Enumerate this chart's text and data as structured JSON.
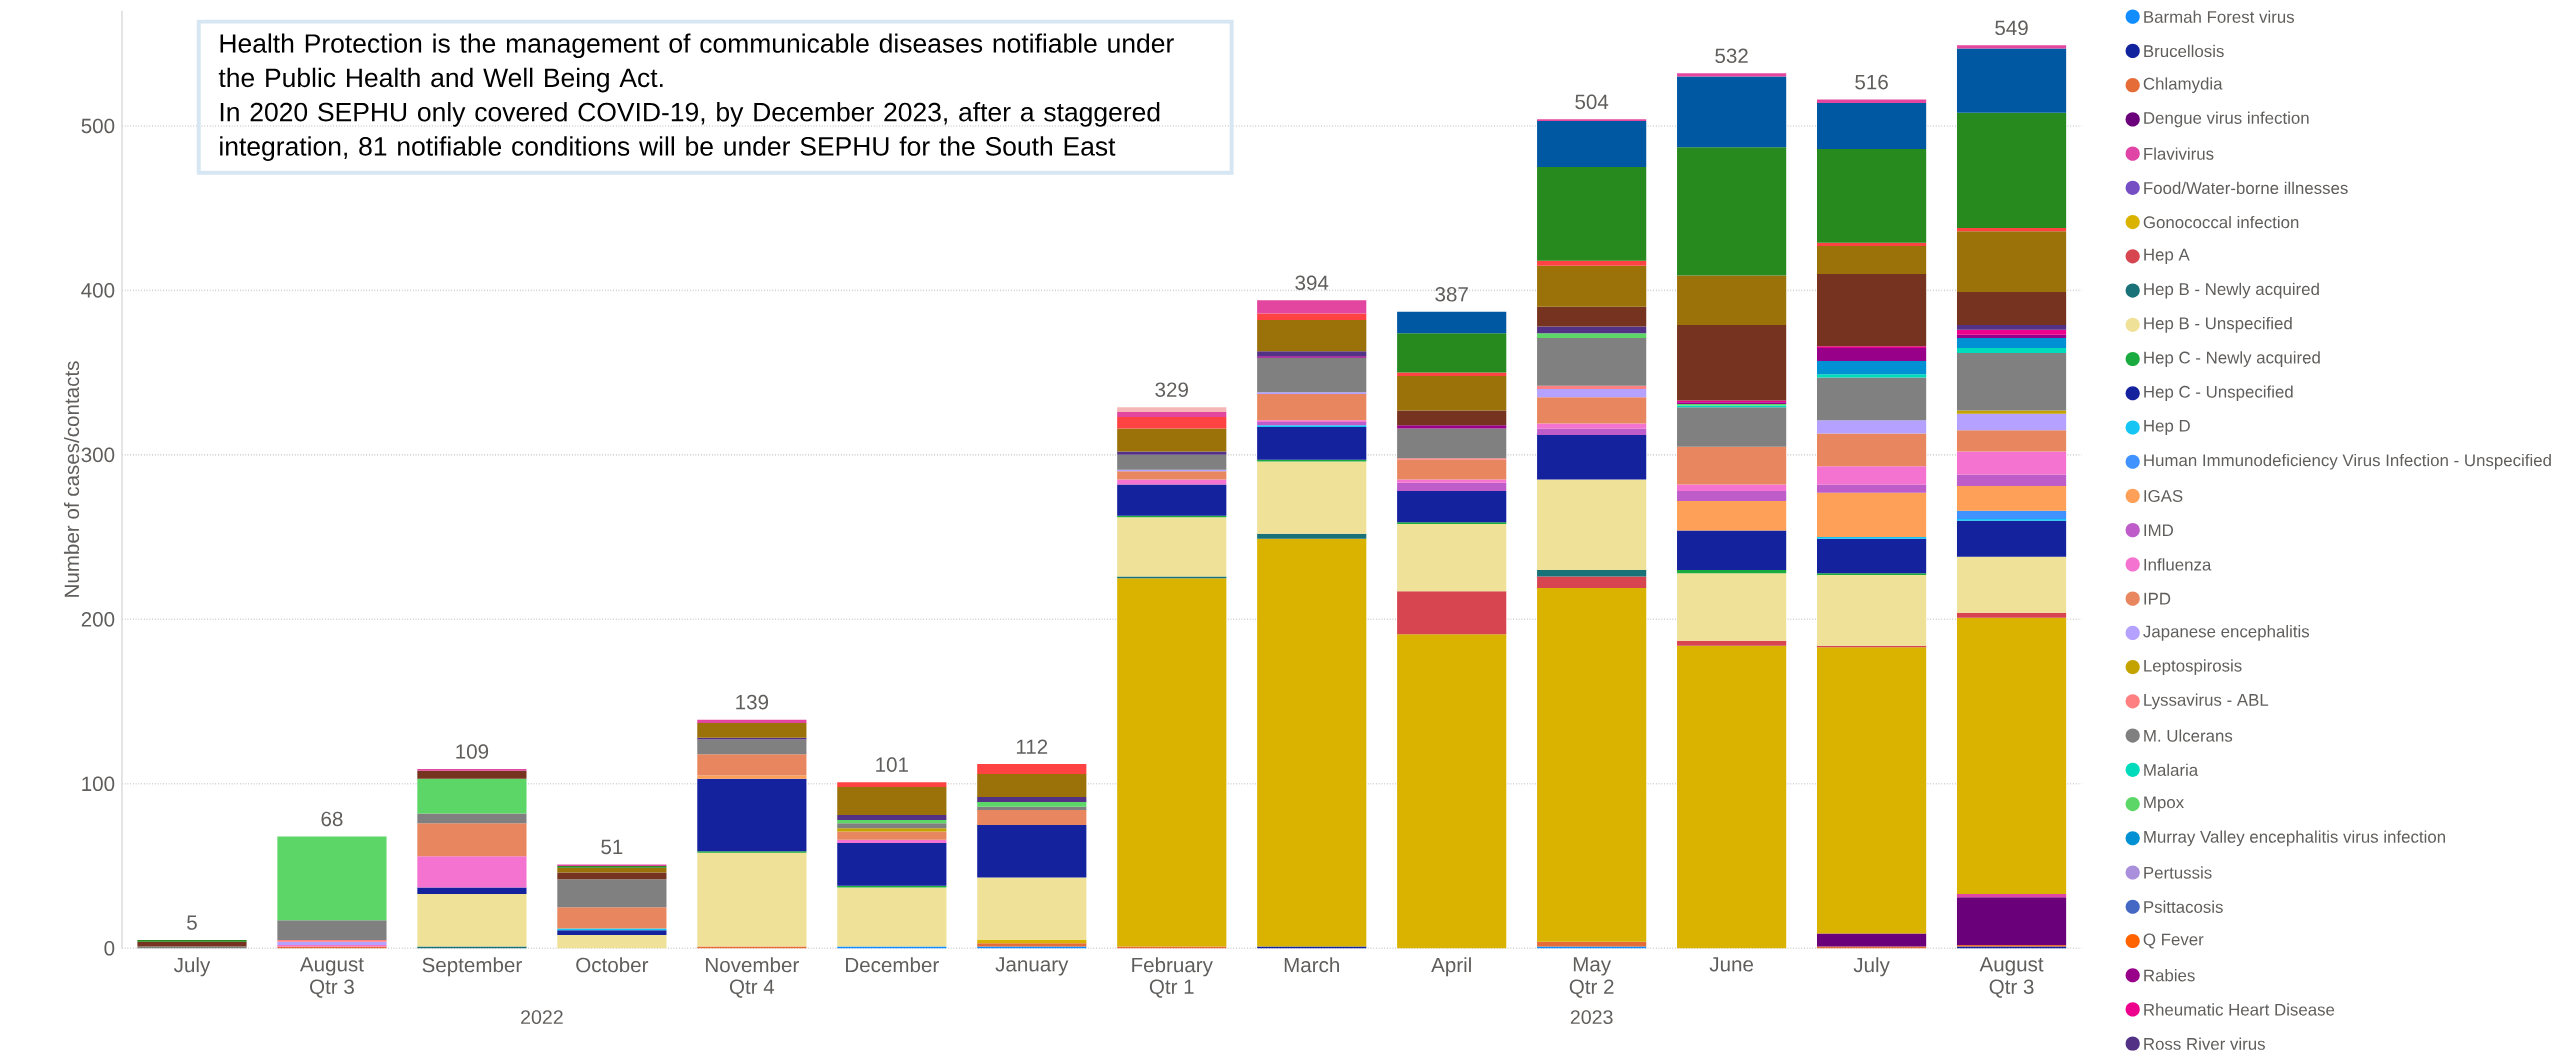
{
  "chart_data": {
    "type": "bar",
    "stacked": true,
    "ylabel": "Number of cases/contacts",
    "categories": [
      "July",
      "August",
      "September",
      "October",
      "November",
      "December",
      "January",
      "February",
      "March",
      "April",
      "May",
      "June",
      "July",
      "August"
    ],
    "ylim": [
      0,
      570
    ],
    "yticks": [
      0,
      100,
      200,
      300,
      400,
      500
    ],
    "grid": "y",
    "legend": "right",
    "totals": [
      "5",
      "68",
      "109",
      "51",
      "139",
      "101",
      "112",
      "329",
      "394",
      "387",
      "504",
      "532",
      "516",
      "549"
    ],
    "annotations": [
      "Qtr 3",
      "Qtr 4",
      "Qtr 1",
      "Qtr 2",
      "Qtr 3",
      "2022",
      "2023",
      "Health Protection is the management of communicable diseases notifiable under the Public Health and Well Being Act.",
      "In 2020 SEPHU only covered COVID-19, by December 2023, after a staggered integration, 81 notifiable conditions will be under SEPHU for the South East"
    ],
    "series": [
      {
        "name": "Barmah Forest virus",
        "color": "#118dff",
        "values": [
          null,
          null,
          null,
          null,
          null,
          1,
          1,
          null,
          null,
          null,
          1,
          null,
          null,
          null
        ]
      },
      {
        "name": "Brucellosis",
        "color": "#12239e",
        "values": [
          null,
          null,
          null,
          null,
          null,
          null,
          null,
          null,
          1,
          null,
          null,
          null,
          null,
          1
        ]
      },
      {
        "name": "Chlamydia",
        "color": "#e66c37",
        "values": [
          null,
          1,
          null,
          null,
          1,
          null,
          2,
          1,
          null,
          null,
          3,
          null,
          1,
          1
        ]
      },
      {
        "name": "Dengue virus infection",
        "color": "#6b007b",
        "values": [
          null,
          null,
          null,
          null,
          null,
          null,
          null,
          null,
          null,
          null,
          null,
          null,
          8,
          29
        ]
      },
      {
        "name": "Flavivirus",
        "color": "#e044a7",
        "values": [
          null,
          null,
          null,
          null,
          null,
          null,
          null,
          null,
          null,
          null,
          null,
          null,
          null,
          2
        ]
      },
      {
        "name": "Food/Water-borne illnesses",
        "color": "#744ec2",
        "values": [
          null,
          null,
          null,
          null,
          null,
          null,
          null,
          null,
          null,
          null,
          null,
          null,
          null,
          null
        ]
      },
      {
        "name": "Gonococcal infection",
        "color": "#d9b300",
        "values": [
          null,
          null,
          null,
          null,
          null,
          null,
          2,
          224,
          248,
          191,
          215,
          184,
          174,
          168
        ]
      },
      {
        "name": "Hep A",
        "color": "#d64550",
        "values": [
          null,
          null,
          null,
          null,
          null,
          null,
          null,
          null,
          null,
          26,
          7,
          3,
          1,
          3
        ]
      },
      {
        "name": "Hep B - Newly acquired",
        "color": "#197278",
        "values": [
          null,
          null,
          1,
          null,
          null,
          null,
          null,
          1,
          3,
          null,
          4,
          null,
          null,
          null
        ]
      },
      {
        "name": "Hep B - Unspecified",
        "color": "#f0e199",
        "values": [
          null,
          null,
          32,
          8,
          57,
          36,
          38,
          36,
          44,
          41,
          55,
          41,
          43,
          34
        ]
      },
      {
        "name": "Hep C - Newly acquired",
        "color": "#1aab40",
        "values": [
          null,
          null,
          null,
          null,
          1,
          1,
          null,
          1,
          1,
          1,
          null,
          2,
          1,
          null
        ]
      },
      {
        "name": "Hep C - Unspecified",
        "color": "#15229e",
        "values": [
          null,
          null,
          4,
          3,
          44,
          26,
          32,
          19,
          20,
          19,
          27,
          24,
          21,
          22
        ]
      },
      {
        "name": "Hep D",
        "color": "#15c6f4",
        "values": [
          null,
          null,
          null,
          1,
          null,
          null,
          null,
          null,
          1,
          null,
          null,
          null,
          1,
          1
        ]
      },
      {
        "name": "Human Immunodeficiency Virus Infection - Unspecified",
        "color": "#4092ff",
        "values": [
          null,
          null,
          null,
          null,
          null,
          null,
          null,
          null,
          null,
          null,
          null,
          null,
          null,
          5
        ]
      },
      {
        "name": "IGAS",
        "color": "#ffa058",
        "values": [
          null,
          null,
          null,
          null,
          2,
          null,
          null,
          null,
          null,
          null,
          null,
          18,
          27,
          15
        ]
      },
      {
        "name": "IMD",
        "color": "#be5dc9",
        "values": [
          null,
          null,
          null,
          null,
          null,
          null,
          null,
          null,
          2,
          5,
          4,
          6,
          5,
          7
        ]
      },
      {
        "name": "Influenza",
        "color": "#f472d0",
        "values": [
          null,
          1,
          19,
          null,
          null,
          2,
          null,
          3,
          1,
          2,
          3,
          4,
          11,
          14
        ]
      },
      {
        "name": "IPD",
        "color": "#e8875f",
        "values": [
          null,
          null,
          20,
          13,
          13,
          5,
          9,
          5,
          16,
          12,
          16,
          23,
          20,
          13
        ]
      },
      {
        "name": "Japanese encephalitis",
        "color": "#b5a1ff",
        "values": [
          null,
          2,
          null,
          null,
          null,
          null,
          null,
          1,
          1,
          null,
          5,
          null,
          8,
          10
        ]
      },
      {
        "name": "Leptospirosis",
        "color": "#c4a200",
        "values": [
          null,
          null,
          null,
          null,
          null,
          2,
          null,
          null,
          null,
          null,
          null,
          null,
          null,
          2
        ]
      },
      {
        "name": "Lyssavirus - ABL",
        "color": "#ff8080",
        "values": [
          null,
          1,
          null,
          null,
          null,
          null,
          null,
          null,
          null,
          1,
          2,
          null,
          null,
          null
        ]
      },
      {
        "name": "M. Ulcerans",
        "color": "#808080",
        "values": [
          1,
          12,
          6,
          17,
          9,
          3,
          2,
          9,
          21,
          18,
          29,
          24,
          26,
          35
        ]
      },
      {
        "name": "Malaria",
        "color": "#00dbbc",
        "values": [
          null,
          null,
          null,
          null,
          null,
          null,
          null,
          null,
          null,
          null,
          null,
          1,
          2,
          3
        ]
      },
      {
        "name": "Mpox",
        "color": "#5bd667",
        "values": [
          null,
          51,
          21,
          null,
          null,
          2,
          3,
          null,
          null,
          null,
          3,
          1,
          null,
          null
        ]
      },
      {
        "name": "Murray Valley encephalitis virus infection",
        "color": "#0091d5",
        "values": [
          null,
          null,
          null,
          null,
          null,
          null,
          null,
          null,
          null,
          null,
          null,
          null,
          8,
          6
        ]
      },
      {
        "name": "Pertussis",
        "color": "#a98fdc",
        "values": [
          null,
          null,
          null,
          null,
          null,
          null,
          null,
          null,
          null,
          null,
          null,
          null,
          null,
          null
        ]
      },
      {
        "name": "Psittacosis",
        "color": "#4668c5",
        "values": [
          null,
          null,
          null,
          null,
          null,
          null,
          null,
          null,
          null,
          null,
          null,
          null,
          null,
          null
        ]
      },
      {
        "name": "Q Fever",
        "color": "#ff6300",
        "values": [
          null,
          null,
          null,
          null,
          null,
          null,
          null,
          null,
          null,
          null,
          null,
          null,
          null,
          null
        ]
      },
      {
        "name": "Rabies",
        "color": "#99008a",
        "values": [
          null,
          null,
          null,
          null,
          null,
          null,
          null,
          null,
          1,
          2,
          null,
          1,
          8,
          2
        ]
      },
      {
        "name": "Rheumatic Heart Disease",
        "color": "#ec008c",
        "values": [
          null,
          null,
          null,
          null,
          null,
          null,
          null,
          null,
          null,
          null,
          null,
          1,
          1,
          3
        ]
      },
      {
        "name": "Ross River virus",
        "color": "#533285",
        "values": [
          null,
          null,
          null,
          null,
          1,
          3,
          3,
          2,
          3,
          null,
          4,
          null,
          null,
          3
        ]
      },
      {
        "color": "#763420",
        "values": [
          3,
          null,
          5,
          4,
          null,
          null,
          null,
          null,
          null,
          9,
          12,
          46,
          44,
          20
        ]
      },
      {
        "color": "#9b710a",
        "values": [
          null,
          null,
          null,
          3,
          9,
          17,
          14,
          14,
          19,
          21,
          25,
          30,
          17,
          37
        ]
      },
      {
        "color": "#ff4343",
        "values": [
          null,
          null,
          null,
          null,
          null,
          3,
          6,
          7,
          4,
          2,
          3,
          null,
          2,
          2
        ]
      },
      {
        "color": "#268a1e",
        "values": [
          1,
          null,
          null,
          1,
          null,
          null,
          null,
          null,
          null,
          24,
          57,
          78,
          57,
          70
        ]
      },
      {
        "color": "#0058a3",
        "values": [
          null,
          null,
          null,
          null,
          null,
          null,
          null,
          null,
          null,
          13,
          28,
          43,
          28,
          39
        ]
      },
      {
        "color": "#e3469e",
        "values": [
          null,
          null,
          1,
          1,
          2,
          null,
          null,
          3,
          8,
          null,
          1,
          2,
          2,
          2
        ]
      },
      {
        "color": "#f4b6b6",
        "values": [
          null,
          null,
          null,
          null,
          null,
          null,
          null,
          3,
          null,
          null,
          null,
          null,
          null,
          null
        ]
      }
    ]
  }
}
